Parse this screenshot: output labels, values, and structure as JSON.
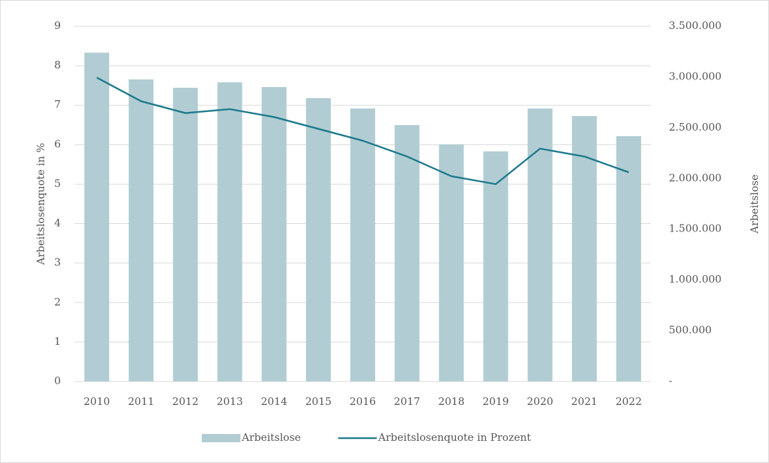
{
  "chart_data": {
    "type": "bar_line",
    "categories": [
      "2010",
      "2011",
      "2012",
      "2013",
      "2014",
      "2015",
      "2016",
      "2017",
      "2018",
      "2019",
      "2020",
      "2021",
      "2022"
    ],
    "series": [
      {
        "name": "Arbeitslose",
        "type": "bar",
        "axis": "y2",
        "color": "#b1cdd3",
        "values": [
          3240000,
          2976000,
          2894000,
          2948000,
          2901000,
          2792000,
          2690000,
          2526000,
          2336000,
          2267000,
          2690000,
          2615000,
          2417000
        ]
      },
      {
        "name": "Arbeitslosenquote in Prozent",
        "type": "line",
        "axis": "y",
        "color": "#1f7a8c",
        "values": [
          7.7,
          7.1,
          6.8,
          6.9,
          6.7,
          6.4,
          6.1,
          5.7,
          5.2,
          5.0,
          5.9,
          5.7,
          5.3
        ]
      }
    ],
    "ylabel": "Arbeitslosenquote in %",
    "y2label": "Arbeitslose",
    "ylim": [
      0,
      9
    ],
    "yticks": [
      0,
      1,
      2,
      3,
      4,
      5,
      6,
      7,
      8,
      9
    ],
    "y2lim": [
      0,
      3500000
    ],
    "y2ticks": [
      {
        "value": 0,
        "label": "-"
      },
      {
        "value": 500000,
        "label": "500.000"
      },
      {
        "value": 1000000,
        "label": "1.000.000"
      },
      {
        "value": 1500000,
        "label": "1.500.000"
      },
      {
        "value": 2000000,
        "label": "2.000.000"
      },
      {
        "value": 2500000,
        "label": "2.500.000"
      },
      {
        "value": 3000000,
        "label": "3.000.000"
      },
      {
        "value": 3500000,
        "label": "3.500.000"
      }
    ],
    "grid": true,
    "legend": "bottom"
  }
}
